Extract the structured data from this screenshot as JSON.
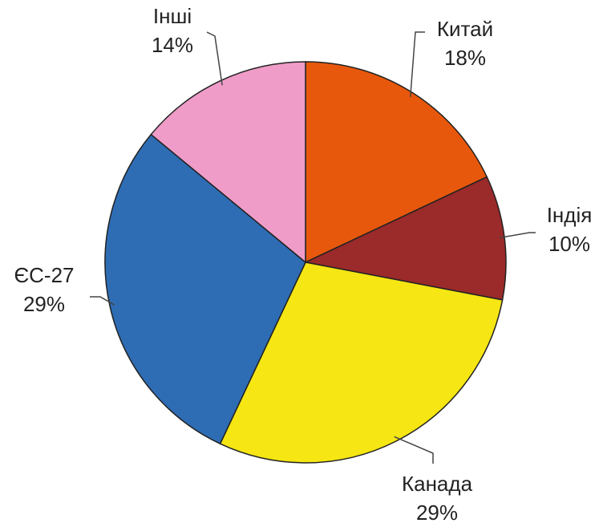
{
  "chart_data": {
    "type": "pie",
    "categories": [
      "Китай",
      "Індія",
      "Канада",
      "ЄС-27",
      "Інші"
    ],
    "values": [
      18,
      10,
      29,
      29,
      14
    ],
    "value_labels": [
      "18%",
      "10%",
      "29%",
      "29%",
      "14%"
    ],
    "colors": [
      "#e8580c",
      "#9b2a2a",
      "#f5e614",
      "#2e6db4",
      "#f09cc8"
    ]
  }
}
